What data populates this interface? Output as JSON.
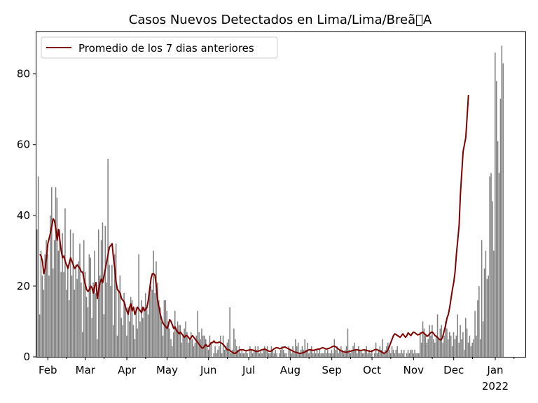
{
  "chart_data": {
    "type": "bar",
    "title": "Casos Nuevos Detectados en Lima/Lima/Breã\u0000A",
    "xlabel": "",
    "ylabel": "",
    "x_start": "2021-01-24",
    "x_end": "2022-01-23",
    "ylim": [
      0,
      92
    ],
    "yticks": [
      0,
      20,
      40,
      60,
      80
    ],
    "xticks": [
      {
        "date": "2021-02-01",
        "label": "Feb"
      },
      {
        "date": "2021-03-01",
        "label": "Mar"
      },
      {
        "date": "2021-04-01",
        "label": "Apr"
      },
      {
        "date": "2021-05-01",
        "label": "May"
      },
      {
        "date": "2021-06-01",
        "label": "Jun"
      },
      {
        "date": "2021-07-01",
        "label": "Jul"
      },
      {
        "date": "2021-08-01",
        "label": "Aug"
      },
      {
        "date": "2021-09-01",
        "label": "Sep"
      },
      {
        "date": "2021-10-01",
        "label": "Oct"
      },
      {
        "date": "2021-11-01",
        "label": "Nov"
      },
      {
        "date": "2021-12-01",
        "label": "Dec"
      },
      {
        "date": "2022-01-01",
        "label": "Jan"
      }
    ],
    "year_label": "2022",
    "legend": {
      "position": "upper-left",
      "label": "Promedio de los 7 dias anteriores"
    },
    "grid": false,
    "colors": {
      "bars": "#808080",
      "line": "#800000"
    },
    "series": [
      {
        "kind": "bar",
        "values": [
          36,
          51,
          12,
          30,
          23,
          19,
          29,
          33,
          29,
          23,
          40,
          48,
          25,
          33,
          48,
          45,
          30,
          36,
          24,
          35,
          24,
          42,
          19,
          26,
          16,
          36,
          23,
          35,
          19,
          26,
          22,
          27,
          32,
          21,
          7,
          33,
          24,
          17,
          14,
          29,
          28,
          11,
          21,
          30,
          18,
          5,
          36,
          23,
          33,
          38,
          12,
          37,
          21,
          56,
          26,
          20,
          26,
          9,
          29,
          32,
          6,
          19,
          23,
          11,
          9,
          18,
          15,
          6,
          14,
          10,
          17,
          16,
          9,
          5,
          14,
          8,
          29,
          10,
          16,
          11,
          14,
          18,
          14,
          12,
          18,
          20,
          19,
          30,
          18,
          27,
          21,
          16,
          14,
          10,
          6,
          16,
          16,
          13,
          10,
          8,
          5,
          3,
          7,
          13,
          8,
          10,
          9,
          9,
          4,
          6,
          8,
          10,
          7,
          4,
          5,
          7,
          5,
          3,
          4,
          6,
          13,
          7,
          5,
          8,
          6,
          6,
          5,
          3,
          2,
          6,
          4,
          0,
          1,
          3,
          1,
          2,
          3,
          6,
          1,
          6,
          2,
          3,
          4,
          5,
          14,
          1,
          2,
          8,
          5,
          3,
          2,
          3,
          1,
          2,
          1,
          1,
          2,
          1,
          0,
          3,
          2,
          1,
          2,
          3,
          2,
          3,
          1,
          2,
          1,
          2,
          3,
          2,
          3,
          1,
          1,
          3,
          2,
          1,
          2,
          1,
          0,
          1,
          2,
          3,
          2,
          1,
          1,
          0,
          3,
          2,
          1,
          3,
          1,
          5,
          3,
          4,
          1,
          2,
          3,
          2,
          5,
          2,
          4,
          1,
          2,
          3,
          1,
          2,
          1,
          2,
          1,
          2,
          1,
          1,
          1,
          2,
          1,
          2,
          1,
          1,
          2,
          1,
          5,
          2,
          3,
          1,
          2,
          3,
          2,
          1,
          2,
          3,
          8,
          2,
          1,
          2,
          3,
          4,
          2,
          1,
          3,
          2,
          2,
          1,
          1,
          2,
          3,
          1,
          2,
          1,
          2,
          0,
          1,
          4,
          1,
          2,
          3,
          2,
          5,
          1,
          2,
          3,
          4,
          2,
          1,
          3,
          2,
          1,
          2,
          3,
          1,
          1,
          2,
          1,
          2,
          0,
          1,
          2,
          1,
          2,
          2,
          1,
          2,
          1,
          1,
          1,
          7,
          4,
          10,
          8,
          6,
          4,
          5,
          9,
          6,
          9,
          5,
          4,
          6,
          12,
          5,
          8,
          9,
          4,
          6,
          10,
          8,
          5,
          7,
          6,
          3,
          7,
          5,
          6,
          12,
          4,
          9,
          5,
          7,
          2,
          11,
          8,
          4,
          6,
          3,
          4,
          5,
          13,
          6,
          16,
          20,
          5,
          33,
          10,
          25,
          30,
          22,
          23,
          51,
          52,
          44,
          30,
          86,
          78,
          61,
          52,
          73,
          88,
          83
        ]
      },
      {
        "kind": "line",
        "name": "Promedio de los 7 dias anteriores",
        "start_index": 2,
        "values": [
          29,
          28.5,
          27,
          23.5,
          25,
          28,
          32,
          33.5,
          35,
          37,
          39,
          38.5,
          36,
          33,
          36,
          33,
          30,
          28,
          28.5,
          27,
          26,
          25,
          26.5,
          28,
          27,
          26,
          25,
          25.5,
          26,
          25.5,
          25,
          24,
          24,
          22,
          20.5,
          19,
          18.5,
          19,
          20,
          19.5,
          18,
          20,
          21,
          16.5,
          19,
          21,
          22,
          21,
          23,
          25,
          27,
          29,
          31,
          31.5,
          32,
          28,
          25,
          21,
          19,
          18.5,
          18,
          16.5,
          16,
          15.5,
          14,
          13,
          12,
          14,
          15,
          13,
          14,
          12,
          13,
          14,
          13.5,
          13,
          12.5,
          14,
          13,
          13.5,
          14,
          16,
          19,
          22,
          23.5,
          23.5,
          23,
          20,
          16,
          14,
          12,
          10.5,
          9.5,
          9,
          8.5,
          8,
          9,
          10.5,
          10,
          9,
          8,
          8.5,
          7.5,
          7,
          6.5,
          7,
          6.5,
          6,
          5.5,
          6,
          6,
          5.5,
          5,
          5.5,
          6,
          5.5,
          5,
          4.5,
          4,
          3.5,
          3,
          2.5,
          2.5,
          3,
          3.5,
          3,
          3,
          3.5,
          4,
          4,
          4.5,
          4,
          4,
          4,
          4.2,
          4,
          3.8,
          3.5,
          3,
          2.5,
          2,
          2,
          1.8,
          1.5,
          1.2,
          1,
          1,
          1.3,
          1.6,
          1.9,
          2,
          2,
          2,
          1.8,
          1.7,
          1.8,
          1.9,
          2,
          2,
          1.9,
          1.8,
          1.6,
          1.5,
          1.6,
          1.7,
          1.9,
          2,
          2.1,
          2.2,
          2,
          1.8,
          1.6,
          1.5,
          1.7,
          2,
          2.3,
          2.5,
          2.6,
          2.5,
          2.3,
          2.4,
          2.6,
          2.7,
          2.8,
          2.6,
          2.4,
          2.2,
          2,
          1.8,
          1.6,
          1.4,
          1.3,
          1.2,
          1.1,
          1,
          1,
          1.1,
          1.2,
          1.4,
          1.6,
          1.8,
          2,
          2,
          1.9,
          1.8,
          1.9,
          2,
          2.1,
          2.2,
          2.2,
          2.4,
          2.6,
          2.5,
          2.3,
          2.2,
          2.3,
          2.4,
          2.6,
          2.8,
          3,
          3,
          2.8,
          2.5,
          2.2,
          1.9,
          1.7,
          1.5,
          1.4,
          1.3,
          1.3,
          1.4,
          1.5,
          1.6,
          1.7,
          1.8,
          1.9,
          2,
          2,
          1.9,
          1.8,
          1.8,
          1.9,
          2,
          1.9,
          1.8,
          1.7,
          1.6,
          1.5,
          1.6,
          1.8,
          2,
          2.1,
          2,
          1.8,
          1.6,
          1.4,
          1.2,
          1,
          1.2,
          1.5,
          2,
          3,
          4,
          5,
          6,
          6.5,
          6.3,
          6,
          5.8,
          5.5,
          6,
          6.5,
          6,
          5.5,
          6,
          6.8,
          6.4,
          6,
          6.6,
          7,
          6.8,
          6.5,
          6.2,
          6.3,
          6.5,
          6.8,
          7,
          6.6,
          6.3,
          5.8,
          6,
          6.5,
          6.9,
          7,
          6.6,
          6,
          5.8,
          5.5,
          5,
          4.8,
          5,
          6,
          7.5,
          9,
          11,
          12,
          14,
          16.5,
          19,
          21,
          24,
          29,
          33,
          37,
          46,
          52,
          58,
          60,
          62,
          68,
          74
        ]
      }
    ]
  }
}
